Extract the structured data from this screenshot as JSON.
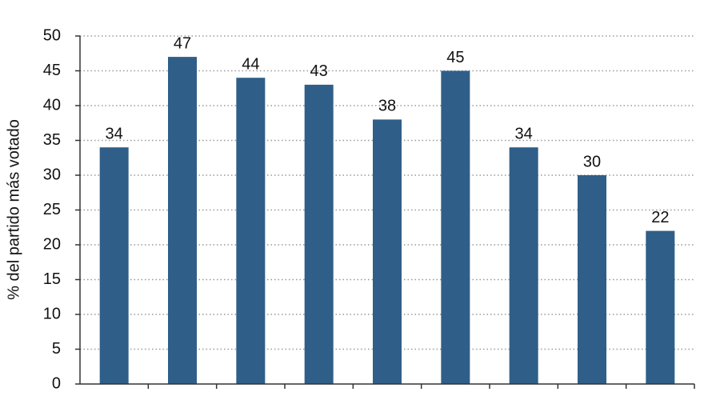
{
  "chart_data": {
    "type": "bar",
    "y_label": "% del partido más votado",
    "categories": [
      null,
      null,
      null,
      null,
      null,
      null,
      null,
      null,
      null
    ],
    "values": [
      34,
      47,
      44,
      43,
      38,
      45,
      34,
      30,
      22
    ],
    "color": "#2f5f88",
    "ylim": [
      0,
      50
    ],
    "yticks": [
      0,
      5,
      10,
      15,
      20,
      25,
      30,
      35,
      40,
      45,
      50
    ],
    "grid": true
  }
}
